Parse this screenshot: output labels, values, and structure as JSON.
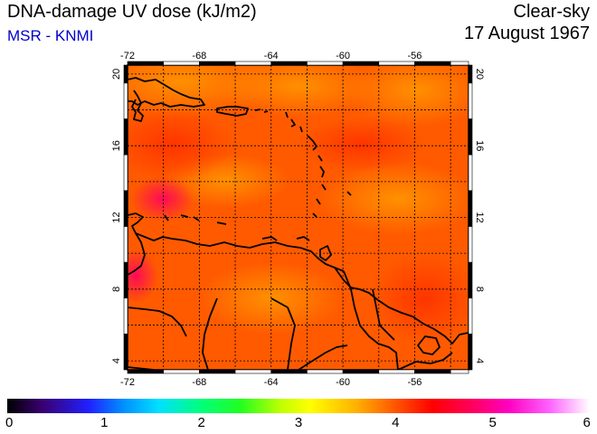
{
  "header": {
    "title": "DNA-damage UV dose (kJ/m2)",
    "source": "MSR - KNMI",
    "condition": "Clear-sky",
    "date": "17 August 1967"
  },
  "map": {
    "lon_range": [
      -72,
      -53
    ],
    "lat_range": [
      3.5,
      20.5
    ],
    "lon_ticks": [
      -72,
      -68,
      -64,
      -60,
      -56
    ],
    "lat_ticks": [
      4,
      8,
      12,
      16,
      20
    ],
    "lon_labels": [
      "-72",
      "-68",
      "-64",
      "-60",
      "-56"
    ],
    "lat_labels": [
      "4",
      "8",
      "12",
      "16",
      "20"
    ],
    "field_color": "#ff5a00",
    "coast_color": "#000000",
    "grid_style": "dotted"
  },
  "colorbar": {
    "labels": [
      "0",
      "1",
      "2",
      "3",
      "4",
      "5",
      "6"
    ]
  }
}
